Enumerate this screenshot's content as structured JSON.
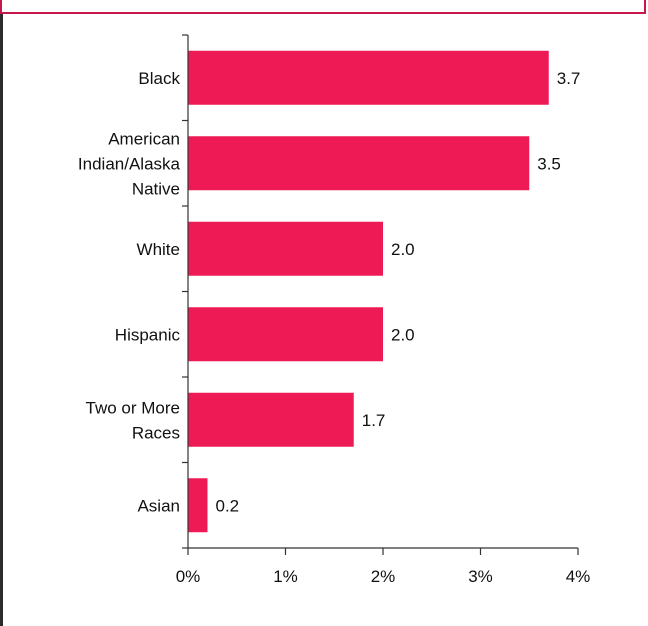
{
  "chart_data": {
    "type": "bar",
    "orientation": "horizontal",
    "categories": [
      [
        "Black"
      ],
      [
        "American",
        "Indian/Alaska",
        "Native"
      ],
      [
        "White"
      ],
      [
        "Hispanic"
      ],
      [
        "Two or More",
        "Races"
      ],
      [
        "Asian"
      ]
    ],
    "values": [
      3.7,
      3.5,
      2.0,
      2.0,
      1.7,
      0.2
    ],
    "value_labels": [
      "3.7",
      "3.5",
      "2.0",
      "2.0",
      "1.7",
      "0.2"
    ],
    "xlim": [
      0,
      4
    ],
    "x_ticks": [
      "0%",
      "1%",
      "2%",
      "3%",
      "4%"
    ],
    "bar_color": "#ee1a55",
    "grid": false,
    "legend": "none"
  }
}
